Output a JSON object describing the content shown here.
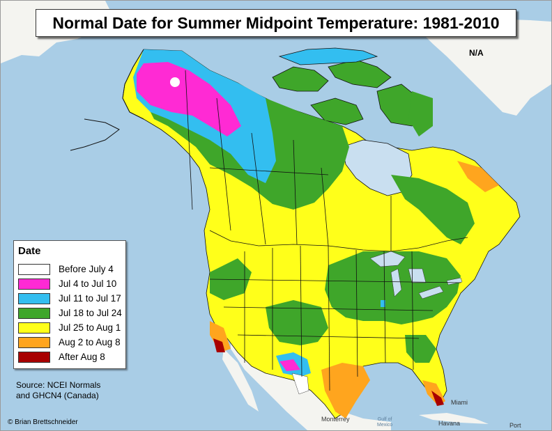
{
  "title": "Normal Date for Summer Midpoint Temperature: 1981-2010",
  "greenland_label": "N/A",
  "legend": {
    "title": "Date",
    "items": [
      {
        "label": "Before July 4",
        "color": "#ffffff"
      },
      {
        "label": "Jul 4 to Jul 10",
        "color": "#ff2ad4"
      },
      {
        "label": "Jul 11 to Jul 17",
        "color": "#33bef0"
      },
      {
        "label": "Jul 18 to Jul 24",
        "color": "#3fa62a"
      },
      {
        "label": "Jul 25 to Aug 1",
        "color": "#ffff1a"
      },
      {
        "label": "Aug 2 to Aug 8",
        "color": "#ffa51e"
      },
      {
        "label": "After Aug 8",
        "color": "#a80000"
      }
    ]
  },
  "source": {
    "line1": "Source: NCEI Normals",
    "line2": "and GHCN4 (Canada)"
  },
  "credit": "© Brian Brettschneider",
  "places": {
    "miami": "Miami",
    "havana": "Havana",
    "monterrey": "Monterrey",
    "gulf_of_mexico": "Gulf of\nMexico",
    "port": "Port"
  },
  "colors": {
    "ocean": "#a9cde6",
    "outside_land": "#f4f4f0",
    "water_body": "#c9dff0"
  }
}
